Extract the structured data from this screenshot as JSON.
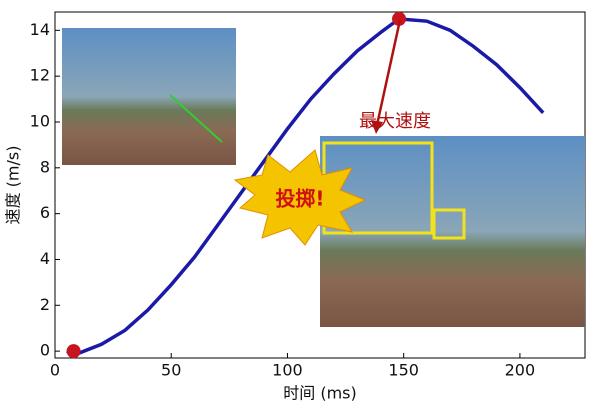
{
  "chart_data": {
    "type": "line",
    "x_label": "时间 (ms)",
    "y_label": "速度 (m/s)",
    "xlim": [
      0,
      228
    ],
    "ylim": [
      -0.3,
      14.8
    ],
    "xticks": [
      0,
      50,
      100,
      150,
      200
    ],
    "yticks": [
      0,
      2,
      4,
      6,
      8,
      10,
      12,
      14
    ],
    "series": [
      {
        "name": "速度",
        "color": "#1a1aa6",
        "x": [
          5,
          10,
          20,
          30,
          40,
          50,
          60,
          70,
          80,
          90,
          100,
          110,
          120,
          130,
          140,
          148,
          160,
          170,
          180,
          190,
          200,
          210
        ],
        "values": [
          0,
          -0.1,
          0.3,
          0.9,
          1.8,
          2.9,
          4.1,
          5.5,
          6.9,
          8.3,
          9.7,
          11,
          12.1,
          13.1,
          13.9,
          14.5,
          14.4,
          14.0,
          13.3,
          12.5,
          11.5,
          10.4
        ]
      },
      {
        "color": "#c8141e",
        "x": [
          8,
          148
        ],
        "values": [
          0,
          14.5
        ],
        "marker": true
      }
    ],
    "annotations": [
      "最大速度",
      "投掷!"
    ]
  }
}
